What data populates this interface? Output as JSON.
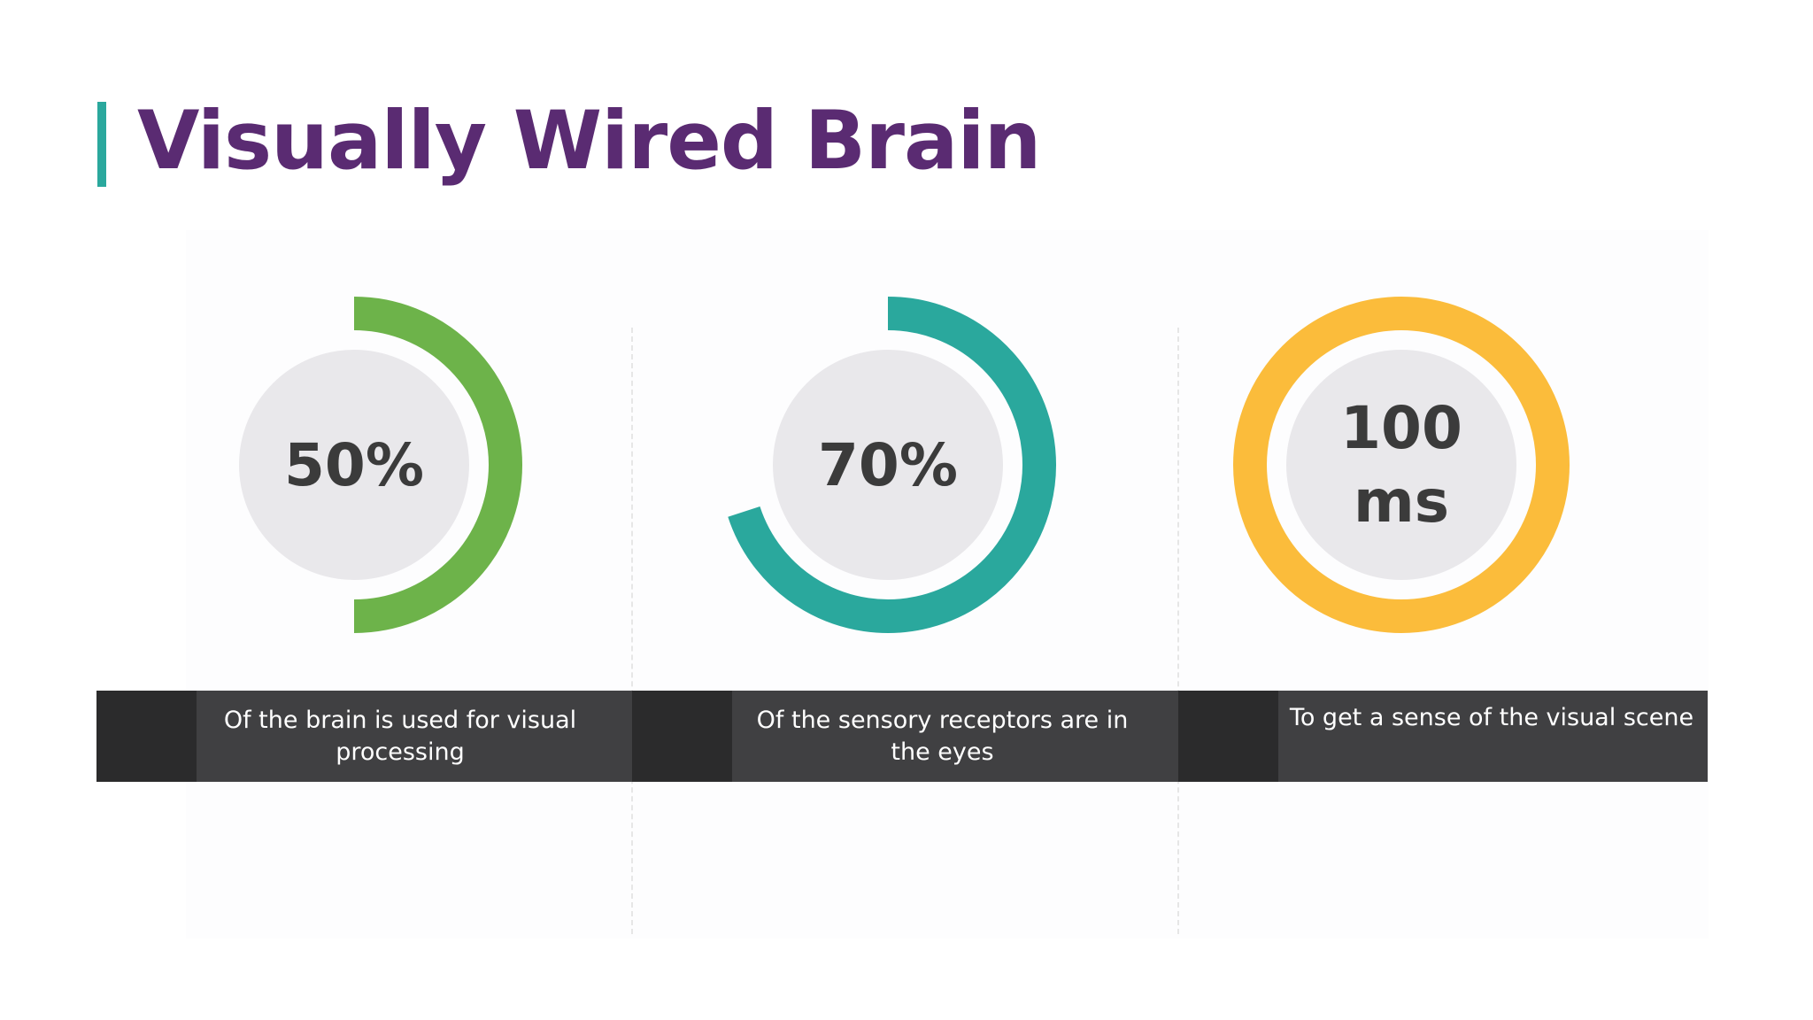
{
  "slide": {
    "title": "Visually Wired Brain"
  },
  "stats": [
    {
      "value_lines": [
        "50%"
      ],
      "fraction": 0.5,
      "color": "#6db34a",
      "caption": "Of the brain is used for visual processing"
    },
    {
      "value_lines": [
        "70%"
      ],
      "fraction": 0.7,
      "color": "#2aa89d",
      "caption": "Of the sensory receptors are in the eyes"
    },
    {
      "value_lines": [
        "100",
        "ms"
      ],
      "fraction": 1.0,
      "color": "#fbbc3b",
      "caption": "To get a sense of the visual scene"
    }
  ],
  "colors": {
    "title": "#5a2b72",
    "accent_bar": "#2aa89d",
    "inner_circle": "#e9e8eb",
    "label_band": "#404042",
    "label_band_dark": "#2b2b2c"
  }
}
